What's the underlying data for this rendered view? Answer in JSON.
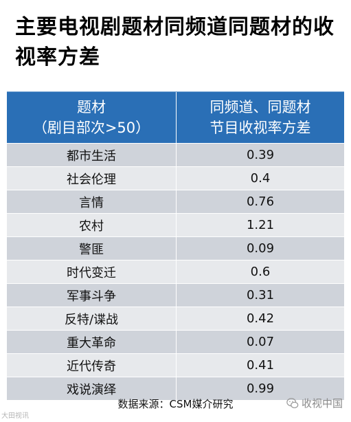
{
  "title": "主要电视剧题材同频道同题材的收视率方差",
  "table": {
    "header": {
      "col1_line1": "题材",
      "col1_line2": "（剧目部次>50）",
      "col2_line1": "同频道、同题材",
      "col2_line2": "节目收视率方差"
    },
    "rows": [
      {
        "genre": "都市生活",
        "variance": "0.39"
      },
      {
        "genre": "社会伦理",
        "variance": "0.4"
      },
      {
        "genre": "言情",
        "variance": "0.76"
      },
      {
        "genre": "农村",
        "variance": "1.21"
      },
      {
        "genre": "警匪",
        "variance": "0.09"
      },
      {
        "genre": "时代变迁",
        "variance": "0.6"
      },
      {
        "genre": "军事斗争",
        "variance": "0.31"
      },
      {
        "genre": "反特/谍战",
        "variance": "0.42"
      },
      {
        "genre": "重大革命",
        "variance": "0.07"
      },
      {
        "genre": "近代传奇",
        "variance": "0.41"
      },
      {
        "genre": "戏说演绎",
        "variance": "0.99"
      }
    ]
  },
  "source": "数据来源：CSM媒介研究",
  "watermark_left": "大田视讯",
  "watermark_right": "收视中国",
  "colors": {
    "header_bg": "#2a6fb6",
    "row_dark": "#cfd3da",
    "row_light": "#e7e9ec"
  },
  "icons": {
    "watermark_right_icon": "wechat-logo-icon"
  }
}
